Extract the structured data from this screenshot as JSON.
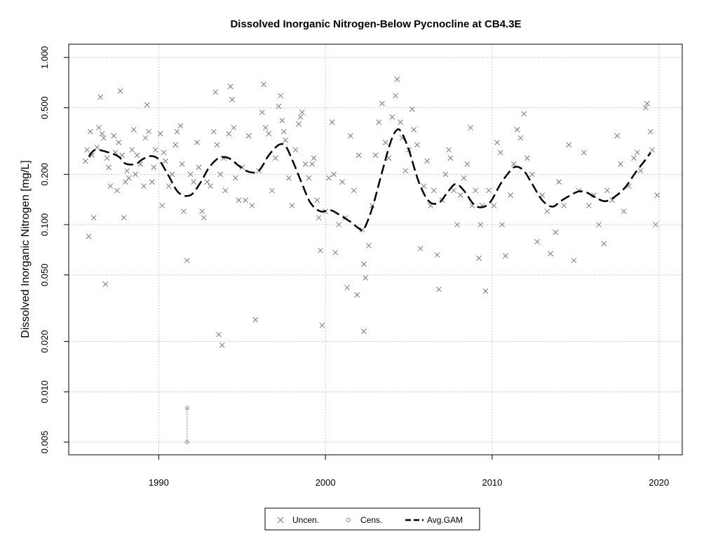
{
  "chart_data": {
    "type": "scatter",
    "title": "Dissolved Inorganic Nitrogen-Below Pycnocline at CB4.3E",
    "xlabel": "",
    "ylabel": "Dissolved Inorganic Nitrogen [mg/L]",
    "y_scale": "log",
    "xlim": [
      1984.6,
      2021.4
    ],
    "ylim": [
      0.0042,
      1.2
    ],
    "x_ticks": [
      1990,
      2000,
      2010,
      2020
    ],
    "y_ticks": [
      0.005,
      0.01,
      0.02,
      0.05,
      0.1,
      0.2,
      0.5,
      1.0
    ],
    "y_tick_labels": [
      "0.005",
      "0.010",
      "0.020",
      "0.050",
      "0.100",
      "0.200",
      "0.500",
      "1.000"
    ],
    "grid": true,
    "legend_position": "bottom",
    "colors": {
      "points": "#6b7b96",
      "gam": "#000000",
      "grid": "#c8c8c8"
    },
    "series": [
      {
        "name": "Uncen.",
        "marker": "x",
        "points": [
          [
            1985.6,
            0.24
          ],
          [
            1985.7,
            0.28
          ],
          [
            1985.8,
            0.085
          ],
          [
            1985.9,
            0.36
          ],
          [
            1986.0,
            0.26
          ],
          [
            1986.1,
            0.11
          ],
          [
            1986.3,
            0.29
          ],
          [
            1986.4,
            0.38
          ],
          [
            1986.5,
            0.58
          ],
          [
            1986.6,
            0.35
          ],
          [
            1986.7,
            0.33
          ],
          [
            1986.8,
            0.044
          ],
          [
            1986.9,
            0.25
          ],
          [
            1987.0,
            0.22
          ],
          [
            1987.1,
            0.17
          ],
          [
            1987.3,
            0.34
          ],
          [
            1987.4,
            0.27
          ],
          [
            1987.5,
            0.16
          ],
          [
            1987.6,
            0.31
          ],
          [
            1987.7,
            0.63
          ],
          [
            1987.8,
            0.26
          ],
          [
            1987.9,
            0.11
          ],
          [
            1988.0,
            0.18
          ],
          [
            1988.1,
            0.21
          ],
          [
            1988.2,
            0.19
          ],
          [
            1988.4,
            0.28
          ],
          [
            1988.5,
            0.37
          ],
          [
            1988.6,
            0.2
          ],
          [
            1988.7,
            0.26
          ],
          [
            1988.9,
            0.23
          ],
          [
            1989.1,
            0.17
          ],
          [
            1989.2,
            0.33
          ],
          [
            1989.3,
            0.52
          ],
          [
            1989.4,
            0.36
          ],
          [
            1989.6,
            0.18
          ],
          [
            1989.7,
            0.22
          ],
          [
            1989.8,
            0.28
          ],
          [
            1990.1,
            0.35
          ],
          [
            1990.2,
            0.13
          ],
          [
            1990.3,
            0.27
          ],
          [
            1990.4,
            0.24
          ],
          [
            1990.6,
            0.17
          ],
          [
            1990.8,
            0.2
          ],
          [
            1991.0,
            0.3
          ],
          [
            1991.1,
            0.36
          ],
          [
            1991.3,
            0.39
          ],
          [
            1991.4,
            0.23
          ],
          [
            1991.5,
            0.12
          ],
          [
            1991.7,
            0.061
          ],
          [
            1991.9,
            0.2
          ],
          [
            1992.1,
            0.18
          ],
          [
            1992.3,
            0.31
          ],
          [
            1992.4,
            0.22
          ],
          [
            1992.6,
            0.12
          ],
          [
            1992.7,
            0.11
          ],
          [
            1992.9,
            0.18
          ],
          [
            1993.1,
            0.17
          ],
          [
            1993.3,
            0.36
          ],
          [
            1993.4,
            0.62
          ],
          [
            1993.5,
            0.3
          ],
          [
            1993.7,
            0.2
          ],
          [
            1993.9,
            0.25
          ],
          [
            1993.6,
            0.022
          ],
          [
            1993.8,
            0.019
          ],
          [
            1994.0,
            0.16
          ],
          [
            1994.2,
            0.35
          ],
          [
            1994.3,
            0.67
          ],
          [
            1994.4,
            0.56
          ],
          [
            1994.5,
            0.38
          ],
          [
            1994.6,
            0.19
          ],
          [
            1994.8,
            0.14
          ],
          [
            1995.0,
            0.22
          ],
          [
            1995.2,
            0.14
          ],
          [
            1995.4,
            0.34
          ],
          [
            1995.6,
            0.13
          ],
          [
            1995.8,
            0.027
          ],
          [
            1996.0,
            0.21
          ],
          [
            1996.2,
            0.47
          ],
          [
            1996.3,
            0.69
          ],
          [
            1996.4,
            0.38
          ],
          [
            1996.6,
            0.35
          ],
          [
            1996.8,
            0.16
          ],
          [
            1997.0,
            0.25
          ],
          [
            1997.2,
            0.51
          ],
          [
            1997.3,
            0.59
          ],
          [
            1997.4,
            0.42
          ],
          [
            1997.5,
            0.36
          ],
          [
            1997.6,
            0.32
          ],
          [
            1997.8,
            0.19
          ],
          [
            1998.0,
            0.13
          ],
          [
            1998.2,
            0.28
          ],
          [
            1998.4,
            0.4
          ],
          [
            1998.5,
            0.44
          ],
          [
            1998.6,
            0.47
          ],
          [
            1998.8,
            0.23
          ],
          [
            1999.0,
            0.19
          ],
          [
            1999.2,
            0.23
          ],
          [
            1999.3,
            0.25
          ],
          [
            1999.5,
            0.14
          ],
          [
            1999.6,
            0.11
          ],
          [
            1999.7,
            0.07
          ],
          [
            1999.8,
            0.025
          ],
          [
            2000.0,
            0.12
          ],
          [
            2000.2,
            0.19
          ],
          [
            2000.4,
            0.41
          ],
          [
            2000.5,
            0.2
          ],
          [
            2000.6,
            0.068
          ],
          [
            2000.8,
            0.1
          ],
          [
            2001.0,
            0.18
          ],
          [
            2001.2,
            0.11
          ],
          [
            2001.3,
            0.042
          ],
          [
            2001.5,
            0.34
          ],
          [
            2001.7,
            0.16
          ],
          [
            2001.9,
            0.038
          ],
          [
            2002.0,
            0.26
          ],
          [
            2002.2,
            0.093
          ],
          [
            2002.3,
            0.058
          ],
          [
            2002.3,
            0.023
          ],
          [
            2002.4,
            0.048
          ],
          [
            2002.6,
            0.075
          ],
          [
            2002.8,
            0.13
          ],
          [
            2003.0,
            0.26
          ],
          [
            2003.2,
            0.41
          ],
          [
            2003.4,
            0.53
          ],
          [
            2003.6,
            0.31
          ],
          [
            2003.8,
            0.25
          ],
          [
            2004.0,
            0.44
          ],
          [
            2004.2,
            0.59
          ],
          [
            2004.3,
            0.74
          ],
          [
            2004.5,
            0.41
          ],
          [
            2004.6,
            0.33
          ],
          [
            2004.8,
            0.21
          ],
          [
            2005.0,
            0.28
          ],
          [
            2005.2,
            0.49
          ],
          [
            2005.3,
            0.37
          ],
          [
            2005.5,
            0.3
          ],
          [
            2005.7,
            0.072
          ],
          [
            2005.9,
            0.17
          ],
          [
            2006.1,
            0.24
          ],
          [
            2006.3,
            0.13
          ],
          [
            2006.5,
            0.16
          ],
          [
            2006.7,
            0.066
          ],
          [
            2006.8,
            0.041
          ],
          [
            2007.0,
            0.14
          ],
          [
            2007.2,
            0.2
          ],
          [
            2007.4,
            0.28
          ],
          [
            2007.5,
            0.25
          ],
          [
            2007.7,
            0.16
          ],
          [
            2007.9,
            0.1
          ],
          [
            2008.1,
            0.15
          ],
          [
            2008.3,
            0.19
          ],
          [
            2008.5,
            0.23
          ],
          [
            2008.7,
            0.38
          ],
          [
            2008.8,
            0.13
          ],
          [
            2009.0,
            0.16
          ],
          [
            2009.2,
            0.063
          ],
          [
            2009.3,
            0.1
          ],
          [
            2009.4,
            0.13
          ],
          [
            2009.6,
            0.04
          ],
          [
            2009.8,
            0.16
          ],
          [
            2010.1,
            0.13
          ],
          [
            2010.3,
            0.31
          ],
          [
            2010.5,
            0.27
          ],
          [
            2010.6,
            0.1
          ],
          [
            2010.8,
            0.065
          ],
          [
            2011.1,
            0.15
          ],
          [
            2011.3,
            0.23
          ],
          [
            2011.5,
            0.37
          ],
          [
            2011.7,
            0.33
          ],
          [
            2011.9,
            0.46
          ],
          [
            2012.1,
            0.25
          ],
          [
            2012.4,
            0.2
          ],
          [
            2012.7,
            0.079
          ],
          [
            2013.0,
            0.15
          ],
          [
            2013.3,
            0.12
          ],
          [
            2013.5,
            0.067
          ],
          [
            2013.8,
            0.09
          ],
          [
            2014.0,
            0.18
          ],
          [
            2014.3,
            0.13
          ],
          [
            2014.6,
            0.3
          ],
          [
            2014.9,
            0.061
          ],
          [
            2015.2,
            0.16
          ],
          [
            2015.5,
            0.27
          ],
          [
            2015.8,
            0.13
          ],
          [
            2016.1,
            0.15
          ],
          [
            2016.4,
            0.1
          ],
          [
            2016.7,
            0.077
          ],
          [
            2016.9,
            0.16
          ],
          [
            2017.2,
            0.14
          ],
          [
            2017.5,
            0.34
          ],
          [
            2017.7,
            0.23
          ],
          [
            2017.9,
            0.12
          ],
          [
            2018.2,
            0.17
          ],
          [
            2018.5,
            0.25
          ],
          [
            2018.7,
            0.27
          ],
          [
            2018.9,
            0.21
          ],
          [
            2019.2,
            0.5
          ],
          [
            2019.3,
            0.53
          ],
          [
            2019.5,
            0.36
          ],
          [
            2019.6,
            0.28
          ],
          [
            2019.8,
            0.1
          ],
          [
            2019.9,
            0.15
          ]
        ]
      },
      {
        "name": "Cens.",
        "marker": "o",
        "intervals": [
          {
            "x": 1991.7,
            "lower": 0.005,
            "upper": 0.008
          }
        ]
      },
      {
        "name": "Avg.GAM",
        "style": "dashed",
        "line": [
          [
            1985.8,
            0.255
          ],
          [
            1986.2,
            0.28
          ],
          [
            1987.0,
            0.27
          ],
          [
            1987.6,
            0.255
          ],
          [
            1988.0,
            0.232
          ],
          [
            1988.6,
            0.23
          ],
          [
            1989.0,
            0.245
          ],
          [
            1989.5,
            0.257
          ],
          [
            1990.0,
            0.245
          ],
          [
            1990.6,
            0.195
          ],
          [
            1991.2,
            0.155
          ],
          [
            1991.9,
            0.15
          ],
          [
            1992.5,
            0.178
          ],
          [
            1993.0,
            0.218
          ],
          [
            1993.6,
            0.25
          ],
          [
            1994.2,
            0.25
          ],
          [
            1994.8,
            0.225
          ],
          [
            1995.4,
            0.207
          ],
          [
            1996.0,
            0.21
          ],
          [
            1996.6,
            0.26
          ],
          [
            1997.2,
            0.3
          ],
          [
            1997.6,
            0.295
          ],
          [
            1998.0,
            0.245
          ],
          [
            1998.6,
            0.175
          ],
          [
            1999.1,
            0.135
          ],
          [
            1999.7,
            0.12
          ],
          [
            2000.3,
            0.122
          ],
          [
            2000.8,
            0.115
          ],
          [
            2001.5,
            0.104
          ],
          [
            2002.0,
            0.095
          ],
          [
            2002.3,
            0.094
          ],
          [
            2002.8,
            0.125
          ],
          [
            2003.3,
            0.19
          ],
          [
            2003.9,
            0.31
          ],
          [
            2004.3,
            0.37
          ],
          [
            2004.6,
            0.35
          ],
          [
            2005.0,
            0.28
          ],
          [
            2005.6,
            0.18
          ],
          [
            2006.2,
            0.138
          ],
          [
            2006.8,
            0.135
          ],
          [
            2007.3,
            0.155
          ],
          [
            2007.8,
            0.175
          ],
          [
            2008.3,
            0.16
          ],
          [
            2008.9,
            0.132
          ],
          [
            2009.4,
            0.127
          ],
          [
            2009.9,
            0.137
          ],
          [
            2010.5,
            0.175
          ],
          [
            2011.0,
            0.205
          ],
          [
            2011.4,
            0.222
          ],
          [
            2011.9,
            0.21
          ],
          [
            2012.4,
            0.175
          ],
          [
            2013.0,
            0.14
          ],
          [
            2013.6,
            0.128
          ],
          [
            2014.1,
            0.138
          ],
          [
            2014.6,
            0.148
          ],
          [
            2015.2,
            0.158
          ],
          [
            2015.7,
            0.155
          ],
          [
            2016.2,
            0.145
          ],
          [
            2016.8,
            0.138
          ],
          [
            2017.4,
            0.148
          ],
          [
            2018.0,
            0.168
          ],
          [
            2018.6,
            0.205
          ],
          [
            2019.2,
            0.245
          ],
          [
            2019.5,
            0.27
          ]
        ]
      }
    ]
  }
}
